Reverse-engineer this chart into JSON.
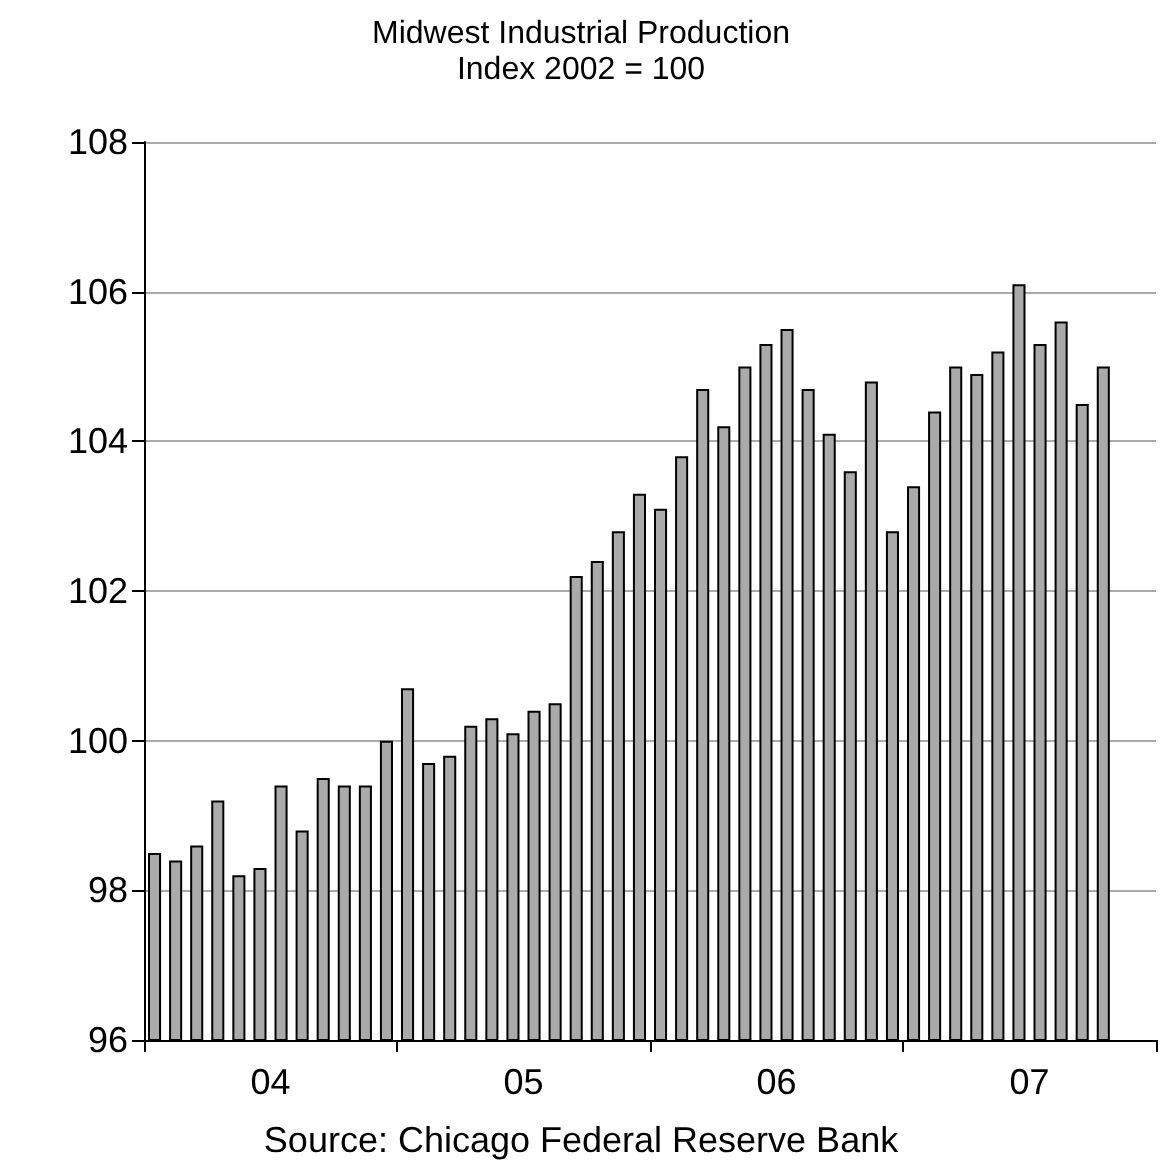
{
  "chart_data": {
    "type": "bar",
    "title": "Midwest Industrial Production",
    "subtitle": "Index 2002 = 100",
    "categories": [
      null,
      null,
      null,
      null,
      null,
      "04",
      null,
      null,
      null,
      null,
      null,
      null,
      null,
      null,
      null,
      null,
      null,
      "05",
      null,
      null,
      null,
      null,
      null,
      null,
      null,
      null,
      null,
      null,
      null,
      "06",
      null,
      null,
      null,
      null,
      null,
      null,
      null,
      null,
      null,
      null,
      null,
      "07",
      null,
      null,
      null,
      null,
      null,
      null
    ],
    "values": [
      98.5,
      98.4,
      98.6,
      99.2,
      98.2,
      98.3,
      99.4,
      98.8,
      99.5,
      99.4,
      99.4,
      100.0,
      100.7,
      99.7,
      99.8,
      100.2,
      100.3,
      100.1,
      100.4,
      100.5,
      102.2,
      102.4,
      102.8,
      103.3,
      103.1,
      103.8,
      104.7,
      104.2,
      105.0,
      105.3,
      105.5,
      104.7,
      104.1,
      103.6,
      104.8,
      102.8,
      103.4,
      104.4,
      105.0,
      104.9,
      105.2,
      106.1,
      105.3,
      105.6,
      104.5,
      105.0,
      null,
      null
    ],
    "color": "#aaaaaa",
    "ylim": [
      96,
      108
    ],
    "yticks": [
      96,
      98,
      100,
      102,
      104,
      106,
      108
    ],
    "grid": "y",
    "annotations": [
      "Source: Chicago Federal Reserve Bank"
    ]
  }
}
